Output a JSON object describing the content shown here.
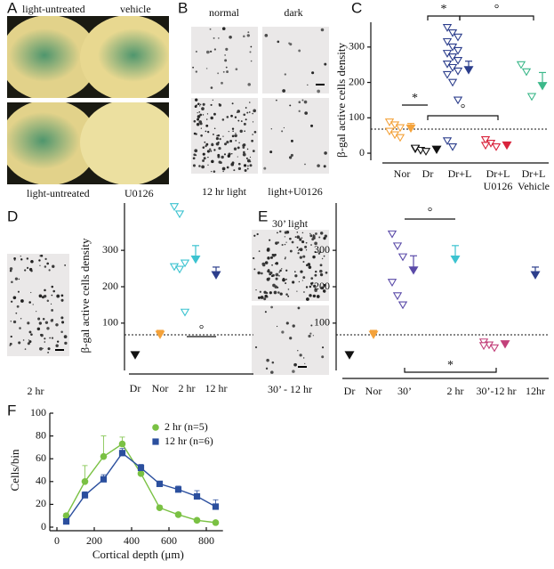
{
  "panels": {
    "A": {
      "letter": "A",
      "labels": [
        "light-untreated",
        "vehicle",
        "light-untreated",
        "U0126"
      ]
    },
    "B": {
      "letter": "B",
      "labels": [
        "normal",
        "dark",
        "12 hr light",
        "light+U0126"
      ]
    },
    "C": {
      "letter": "C"
    },
    "D": {
      "letter": "D",
      "image_label": "2 hr"
    },
    "E": {
      "letter": "E",
      "image_labels": [
        "30’ light",
        "30’ - 12 hr"
      ]
    },
    "F": {
      "letter": "F"
    }
  },
  "chart_data": [
    {
      "type": "strip",
      "ylabel": "β-gal active cells density",
      "ylim": [
        -20,
        370
      ],
      "yticks": [
        0,
        100,
        200,
        300
      ],
      "reference_line": 68,
      "categories": [
        "Nor",
        "Dr",
        "Dr+L",
        [
          "Dr+L",
          "U0126"
        ],
        [
          "Dr+L",
          "Vehicle"
        ]
      ],
      "groups": [
        {
          "color": "#f4a23a",
          "points": [
            88,
            80,
            72,
            62,
            52,
            44
          ],
          "mean": 70,
          "error": 14
        },
        {
          "color": "#111111",
          "points": [
            12,
            8,
            5,
            14
          ],
          "mean": 10
        },
        {
          "color": "#2c3e8c",
          "points": [
            355,
            340,
            328,
            315,
            300,
            290,
            282,
            272,
            262,
            252,
            242,
            232,
            222,
            200,
            150,
            35,
            18
          ],
          "mean": 235,
          "error": 25
        },
        {
          "color": "#d9243c",
          "points": [
            38,
            28,
            18,
            22
          ],
          "mean": 22
        },
        {
          "color": "#3cb88a",
          "points": [
            250,
            230,
            160
          ],
          "mean": 190,
          "error": 38
        }
      ],
      "annotations": [
        "*",
        "*",
        "°",
        "°"
      ]
    },
    {
      "type": "strip",
      "ylabel": "β-gal active cells density",
      "ylim": [
        -30,
        430
      ],
      "yticks": [
        100,
        200,
        300
      ],
      "reference_line": 68,
      "categories": [
        "Dr",
        "Nor",
        "2 hr",
        "12 hr"
      ],
      "groups": [
        {
          "color": "#111111",
          "mean": 12
        },
        {
          "color": "#f4a23a",
          "mean": 68,
          "error": 12
        },
        {
          "color": "#3cc3d0",
          "points": [
            420,
            400,
            265,
            255,
            248,
            130
          ],
          "mean": 275,
          "error": 38
        },
        {
          "color": "#2c3e8c",
          "mean": 232,
          "error": 22
        }
      ],
      "annotations": [
        "°"
      ]
    },
    {
      "type": "strip",
      "ylim": [
        -30,
        430
      ],
      "yticks": [
        100,
        200,
        300
      ],
      "reference_line": 68,
      "categories": [
        "Dr",
        "Nor",
        "30’",
        "2 hr",
        "30’-12 hr",
        "12hr"
      ],
      "groups": [
        {
          "color": "#111111",
          "mean": 12
        },
        {
          "color": "#f4a23a",
          "mean": 68,
          "error": 12
        },
        {
          "color": "#5a4aa8",
          "points": [
            345,
            312,
            282,
            212,
            175,
            150
          ],
          "mean": 245,
          "error": 40
        },
        {
          "color": "#3cc3d0",
          "mean": 275,
          "error": 38
        },
        {
          "color": "#c2407a",
          "points": [
            48,
            40,
            32,
            38
          ],
          "mean": 42
        },
        {
          "color": "#2c3e8c",
          "mean": 232,
          "error": 22
        }
      ],
      "annotations": [
        "°",
        "*"
      ]
    },
    {
      "type": "line",
      "xlabel": "Cortical depth (μm)",
      "ylabel": "Cells/bin",
      "x": [
        50,
        150,
        250,
        350,
        450,
        550,
        650,
        750,
        850
      ],
      "xlim": [
        0,
        870
      ],
      "xticks": [
        0,
        200,
        400,
        600,
        800
      ],
      "ylim": [
        0,
        100
      ],
      "yticks": [
        0,
        20,
        40,
        60,
        80,
        100
      ],
      "series": [
        {
          "name": "2 hr (n=5)",
          "color": "#7ac143",
          "values": [
            10,
            40,
            62,
            73,
            47,
            17,
            11,
            6,
            4
          ],
          "errors": [
            2,
            14,
            18,
            6,
            4,
            2,
            2,
            1,
            1
          ]
        },
        {
          "name": "12 hr (n=6)",
          "color": "#2b4f9e",
          "values": [
            5,
            28,
            42,
            65,
            52,
            38,
            33,
            27,
            18
          ],
          "errors": [
            1,
            3,
            4,
            4,
            3,
            2,
            3,
            5,
            6
          ]
        }
      ]
    }
  ]
}
